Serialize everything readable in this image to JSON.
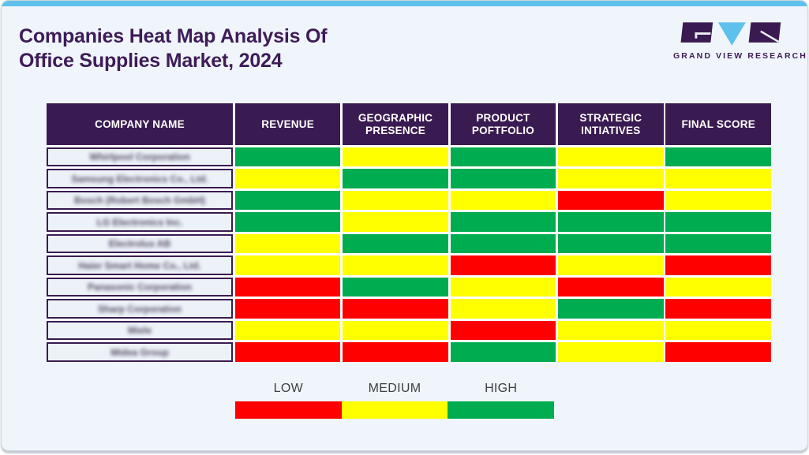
{
  "page": {
    "title_line1": "Companies Heat Map Analysis Of",
    "title_line2": "Office Supplies Market, 2024"
  },
  "logo": {
    "text": "GRAND VIEW RESEARCH"
  },
  "colors": {
    "low": "#FF0000",
    "medium": "#FFFF00",
    "high": "#00AC50",
    "header_bg": "#3A1B51",
    "accent_top_bar": "#5EC1EC",
    "title_text": "#3E1C58",
    "card_bg": "#EFF5FA",
    "company_cell_bg": "#ECF2F8"
  },
  "table": {
    "headers": [
      "COMPANY NAME",
      "REVENUE",
      "GEOGRAPHIC PRESENCE",
      "PRODUCT POFTFOLIO",
      "STRATEGIC INTIATIVES",
      "FINAL SCORE"
    ]
  },
  "legend": {
    "items": [
      {
        "label": "LOW",
        "level": "low"
      },
      {
        "label": "MEDIUM",
        "level": "medium"
      },
      {
        "label": "HIGH",
        "level": "high"
      }
    ]
  },
  "chart_data": {
    "type": "heatmap",
    "title": "Companies Heat Map Analysis Of Office Supplies Market, 2024",
    "columns": [
      "Revenue",
      "Geographic Presence",
      "Product Poftfolio",
      "Strategic Intiatives",
      "Final Score"
    ],
    "rows": [
      "Whirlpool Corporation",
      "Samsung Electronics Co., Ltd.",
      "Bosch (Robert Bosch GmbH)",
      "LG Electronics Inc.",
      "Electrolux AB",
      "Haier Smart Home Co., Ltd.",
      "Panasonic Corporation",
      "Sharp Corporation",
      "Miele",
      "Midea Group"
    ],
    "values": [
      [
        "high",
        "medium",
        "high",
        "medium",
        "high"
      ],
      [
        "medium",
        "high",
        "high",
        "medium",
        "medium"
      ],
      [
        "high",
        "medium",
        "medium",
        "low",
        "medium"
      ],
      [
        "high",
        "medium",
        "high",
        "high",
        "high"
      ],
      [
        "medium",
        "high",
        "high",
        "high",
        "high"
      ],
      [
        "medium",
        "medium",
        "low",
        "medium",
        "low"
      ],
      [
        "low",
        "high",
        "medium",
        "low",
        "medium"
      ],
      [
        "low",
        "low",
        "medium",
        "high",
        "low"
      ],
      [
        "medium",
        "medium",
        "low",
        "medium",
        "medium"
      ],
      [
        "low",
        "low",
        "high",
        "medium",
        "low"
      ]
    ],
    "value_scale": [
      {
        "level": "low",
        "label": "LOW",
        "color": "#FF0000"
      },
      {
        "level": "medium",
        "label": "MEDIUM",
        "color": "#FFFF00"
      },
      {
        "level": "high",
        "label": "HIGH",
        "color": "#00AC50"
      }
    ],
    "legend_position": "bottom"
  }
}
